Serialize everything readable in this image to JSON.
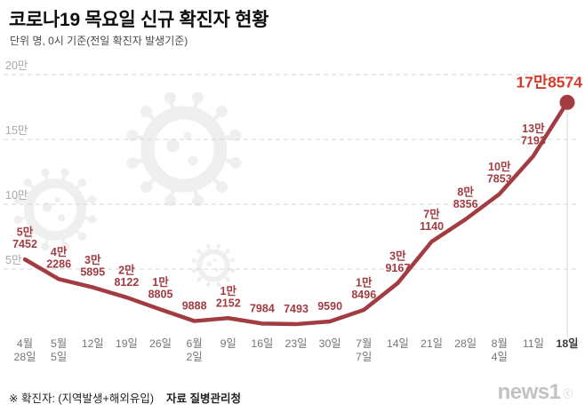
{
  "header": {
    "title": "코로나19 목요일 신규 확진자 현황",
    "subtitle": "단위 명, 0시 기준(전일 확진자 발생기준)"
  },
  "chart_data": {
    "type": "line",
    "title": "코로나19 목요일 신규 확진자 현황",
    "unit_note": "단위 명, 0시 기준(전일 확진자 발생기준)",
    "ylim": [
      0,
      200000
    ],
    "grid": "dashed horizontal",
    "legend": "none",
    "yticks": [
      {
        "value": 200000,
        "label": "20만"
      },
      {
        "value": 150000,
        "label": "15만"
      },
      {
        "value": 100000,
        "label": "10만"
      },
      {
        "value": 50000,
        "label": "5만"
      }
    ],
    "points": [
      {
        "x_label_lines": [
          "4월",
          "28일"
        ],
        "value": 57452,
        "value_label_lines": [
          "5만",
          "7452"
        ]
      },
      {
        "x_label_lines": [
          "5월",
          "5일"
        ],
        "value": 42286,
        "value_label_lines": [
          "4만",
          "2286"
        ]
      },
      {
        "x_label_lines": [
          "12일"
        ],
        "value": 35895,
        "value_label_lines": [
          "3만",
          "5895"
        ]
      },
      {
        "x_label_lines": [
          "19일"
        ],
        "value": 28122,
        "value_label_lines": [
          "2만",
          "8122"
        ]
      },
      {
        "x_label_lines": [
          "26일"
        ],
        "value": 18805,
        "value_label_lines": [
          "1만",
          "8805"
        ]
      },
      {
        "x_label_lines": [
          "6월",
          "2일"
        ],
        "value": 9888,
        "value_label_lines": [
          "9888"
        ]
      },
      {
        "x_label_lines": [
          "9일"
        ],
        "value": 12152,
        "value_label_lines": [
          "1만",
          "2152"
        ]
      },
      {
        "x_label_lines": [
          "16일"
        ],
        "value": 7984,
        "value_label_lines": [
          "7984"
        ]
      },
      {
        "x_label_lines": [
          "23일"
        ],
        "value": 7493,
        "value_label_lines": [
          "7493"
        ]
      },
      {
        "x_label_lines": [
          "30일"
        ],
        "value": 9590,
        "value_label_lines": [
          "9590"
        ]
      },
      {
        "x_label_lines": [
          "7월",
          "7일"
        ],
        "value": 18496,
        "value_label_lines": [
          "1만",
          "8496"
        ]
      },
      {
        "x_label_lines": [
          "14일"
        ],
        "value": 39167,
        "value_label_lines": [
          "3만",
          "9167"
        ]
      },
      {
        "x_label_lines": [
          "21일"
        ],
        "value": 71140,
        "value_label_lines": [
          "7만",
          "1140"
        ]
      },
      {
        "x_label_lines": [
          "28일"
        ],
        "value": 88356,
        "value_label_lines": [
          "8만",
          "8356"
        ]
      },
      {
        "x_label_lines": [
          "8월",
          "4일"
        ],
        "value": 107853,
        "value_label_lines": [
          "10만",
          "7853"
        ]
      },
      {
        "x_label_lines": [
          "11일"
        ],
        "value": 137193,
        "value_label_lines": [
          "13만",
          "7193"
        ]
      },
      {
        "x_label_lines": [
          "18일"
        ],
        "value": 178574,
        "value_label_lines": [
          "17만8574"
        ],
        "highlight": true
      }
    ],
    "line_color": "#a23c42",
    "dot_color": "#a23c42",
    "label_color": "#a23c42",
    "highlight_color": "#d93a2a",
    "grid_color": "#d6d6d6",
    "axis_color": "#a8a8a8",
    "xlabel_color": "#767676",
    "xlabel_highlight_color": "#3a3a3a",
    "watermark_color": "#efefef",
    "watermark": "coronavirus-icon"
  },
  "footer": {
    "note": "※ 확진자: (지역발생+해외유입)",
    "source": "자료 질병관리청",
    "logo_text": "news1",
    "copyright_symbol": "ⓒ"
  }
}
